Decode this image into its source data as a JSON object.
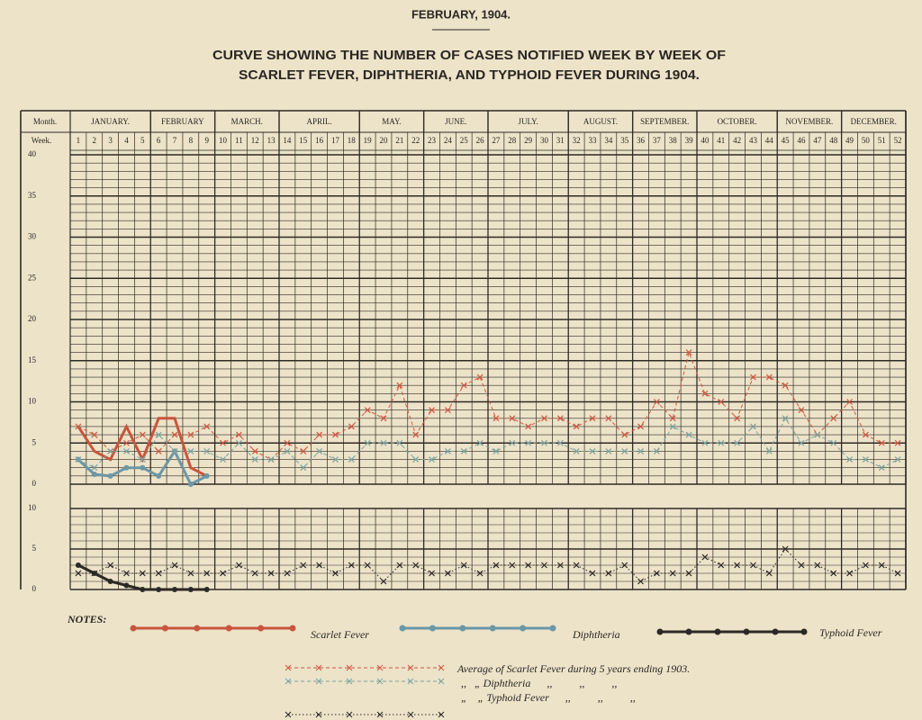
{
  "header": {
    "date": "FEBRUARY, 1904.",
    "title_lines": [
      "CURVE SHOWING THE NUMBER OF CASES NOTIFIED WEEK BY WEEK OF",
      "SCARLET FEVER, DIPHTHERIA, AND TYPHOID FEVER DURING 1904."
    ],
    "month_label": "Month.",
    "week_label": "Week.",
    "months": [
      "JANUARY.",
      "FEBRUARY",
      "MARCH.",
      "APRIL.",
      "MAY.",
      "JUNE.",
      "JULY.",
      "AUGUST.",
      "SEPTEMBER.",
      "OCTOBER.",
      "NOVEMBER.",
      "DECEMBER."
    ],
    "notes_label": "NOTES:"
  },
  "chart_data": [
    {
      "type": "line",
      "x": [
        1,
        2,
        3,
        4,
        5,
        6,
        7,
        8,
        9,
        10,
        11,
        12,
        13,
        14,
        15,
        16,
        17,
        18,
        19,
        20,
        21,
        22,
        23,
        24,
        25,
        26,
        27,
        28,
        29,
        30,
        31,
        32,
        33,
        34,
        35,
        36,
        37,
        38,
        39,
        40,
        41,
        42,
        43,
        44,
        45,
        46,
        47,
        48,
        49,
        50,
        51,
        52
      ],
      "ylim": [
        0,
        40
      ],
      "yticks": [
        0,
        5,
        10,
        15,
        20,
        25,
        30,
        35,
        40
      ],
      "grid": true,
      "series": [
        {
          "name": "Scarlet Fever",
          "color": "#c9553c",
          "style": "solid",
          "values": [
            7,
            4,
            3,
            7,
            3,
            8,
            8,
            2,
            1,
            null,
            null,
            null,
            null,
            null,
            null,
            null,
            null,
            null,
            null,
            null,
            null,
            null,
            null,
            null,
            null,
            null,
            null,
            null,
            null,
            null,
            null,
            null,
            null,
            null,
            null,
            null,
            null,
            null,
            null,
            null,
            null,
            null,
            null,
            null,
            null,
            null,
            null,
            null,
            null,
            null,
            null,
            null
          ]
        },
        {
          "name": "Diphtheria",
          "color": "#6b97a6",
          "style": "solid",
          "values": [
            3,
            1.2,
            1,
            2,
            2,
            1,
            4,
            0,
            1,
            null,
            null,
            null,
            null,
            null,
            null,
            null,
            null,
            null,
            null,
            null,
            null,
            null,
            null,
            null,
            null,
            null,
            null,
            null,
            null,
            null,
            null,
            null,
            null,
            null,
            null,
            null,
            null,
            null,
            null,
            null,
            null,
            null,
            null,
            null,
            null,
            null,
            null,
            null,
            null,
            null,
            null,
            null
          ]
        },
        {
          "name": "Average of Scarlet Fever during 5 years ending 1903.",
          "color": "#d0573f",
          "style": "dashed",
          "values": [
            7,
            6,
            4,
            5,
            6,
            4,
            6,
            6,
            7,
            5,
            6,
            4,
            3,
            5,
            4,
            6,
            6,
            7,
            9,
            8,
            12,
            6,
            9,
            9,
            12,
            13,
            8,
            8,
            7,
            8,
            8,
            7,
            8,
            8,
            6,
            7,
            10,
            8,
            16,
            11,
            10,
            8,
            13,
            13,
            12,
            9,
            6,
            8,
            10,
            6,
            5,
            5
          ]
        },
        {
          "name": ",,   „ Diphtheria      ,,          ,,          ,,",
          "color": "#7ba3a0",
          "style": "dashed",
          "values": [
            3,
            2,
            4,
            4,
            3,
            6,
            4,
            4,
            4,
            3,
            5,
            3,
            3,
            4,
            2,
            4,
            3,
            3,
            5,
            5,
            5,
            3,
            3,
            4,
            4,
            5,
            4,
            5,
            5,
            5,
            5,
            4,
            4,
            4,
            4,
            4,
            4,
            7,
            6,
            5,
            5,
            5,
            7,
            4,
            8,
            5,
            6,
            5,
            3,
            3,
            2,
            3
          ]
        }
      ]
    },
    {
      "type": "line",
      "x": [
        1,
        2,
        3,
        4,
        5,
        6,
        7,
        8,
        9,
        10,
        11,
        12,
        13,
        14,
        15,
        16,
        17,
        18,
        19,
        20,
        21,
        22,
        23,
        24,
        25,
        26,
        27,
        28,
        29,
        30,
        31,
        32,
        33,
        34,
        35,
        36,
        37,
        38,
        39,
        40,
        41,
        42,
        43,
        44,
        45,
        46,
        47,
        48,
        49,
        50,
        51,
        52
      ],
      "ylim": [
        0,
        10
      ],
      "yticks": [
        0,
        5,
        10
      ],
      "grid": true,
      "series": [
        {
          "name": "Typhoid Fever",
          "color": "#2c2825",
          "style": "solid",
          "values": [
            3,
            2,
            1,
            0.5,
            0,
            0,
            0,
            0,
            0,
            null,
            null,
            null,
            null,
            null,
            null,
            null,
            null,
            null,
            null,
            null,
            null,
            null,
            null,
            null,
            null,
            null,
            null,
            null,
            null,
            null,
            null,
            null,
            null,
            null,
            null,
            null,
            null,
            null,
            null,
            null,
            null,
            null,
            null,
            null,
            null,
            null,
            null,
            null,
            null,
            null,
            null,
            null
          ]
        },
        {
          "name": "„    „ Typhoid Fever      ,,          ,,          ,,",
          "color": "#2c2825",
          "style": "dotted",
          "values": [
            2,
            2,
            3,
            2,
            2,
            2,
            3,
            2,
            2,
            2,
            3,
            2,
            2,
            2,
            3,
            3,
            2,
            3,
            3,
            1,
            3,
            3,
            2,
            2,
            3,
            2,
            3,
            3,
            3,
            3,
            3,
            3,
            2,
            2,
            3,
            1,
            2,
            2,
            2,
            4,
            3,
            3,
            3,
            2,
            5,
            3,
            3,
            2,
            2,
            3,
            3,
            2
          ]
        }
      ]
    }
  ]
}
